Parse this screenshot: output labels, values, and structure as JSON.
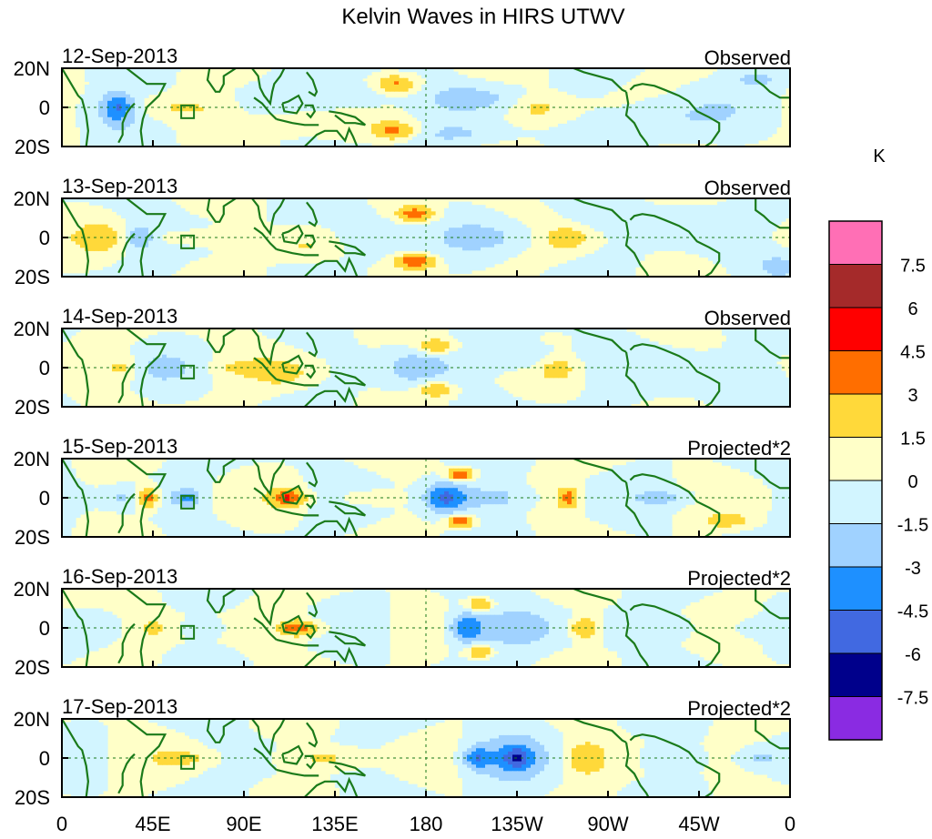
{
  "title": "Kelvin Waves in HIRS UTWV",
  "chart_data": {
    "type": "heatmap",
    "title": "Kelvin Waves in HIRS UTWV",
    "x_tick_labels": [
      "0",
      "45E",
      "90E",
      "135E",
      "180",
      "135W",
      "90W",
      "45W",
      "0"
    ],
    "x_ticks_deg": [
      0,
      45,
      90,
      135,
      180,
      225,
      270,
      315,
      360
    ],
    "y_tick_labels": [
      "20N",
      "0",
      "20S"
    ],
    "ylim": [
      -20,
      20
    ],
    "xlim": [
      0,
      360
    ],
    "panels": [
      {
        "date": "12-Sep-2013",
        "label": "Observed",
        "amp": 1.0,
        "blobs": [
          {
            "lon": 28,
            "lat": 0,
            "v": -3.5,
            "sx": 5,
            "sy": 5
          },
          {
            "lon": 25,
            "lat": -2,
            "v": -2.0,
            "sx": 12,
            "sy": 8
          },
          {
            "lon": 60,
            "lat": 0,
            "v": 1.6,
            "sx": 18,
            "sy": 4
          },
          {
            "lon": 165,
            "lat": 12,
            "v": 3.5,
            "sx": 8,
            "sy": 3.5
          },
          {
            "lon": 165,
            "lat": -12,
            "v": 3.5,
            "sx": 8,
            "sy": 3.5
          },
          {
            "lon": 145,
            "lat": 6,
            "v": -2.0,
            "sx": 14,
            "sy": 6
          },
          {
            "lon": 205,
            "lat": 5,
            "v": -1.8,
            "sx": 18,
            "sy": 5
          },
          {
            "lon": 200,
            "lat": -14,
            "v": -1.6,
            "sx": 20,
            "sy": 4
          },
          {
            "lon": 235,
            "lat": 0,
            "v": 2.0,
            "sx": 10,
            "sy": 5
          },
          {
            "lon": 300,
            "lat": -5,
            "v": -1.6,
            "sx": 20,
            "sy": 8
          },
          {
            "lon": 345,
            "lat": 15,
            "v": -1.8,
            "sx": 10,
            "sy": 4
          },
          {
            "lon": 110,
            "lat": -8,
            "v": 1.3,
            "sx": 15,
            "sy": 5
          }
        ]
      },
      {
        "date": "13-Sep-2013",
        "label": "Observed",
        "amp": 1.0,
        "blobs": [
          {
            "lon": 38,
            "lat": 0,
            "v": -3.2,
            "sx": 5,
            "sy": 4
          },
          {
            "lon": 20,
            "lat": 0,
            "v": 2.0,
            "sx": 8,
            "sy": 5
          },
          {
            "lon": 65,
            "lat": 0,
            "v": 1.6,
            "sx": 15,
            "sy": 3
          },
          {
            "lon": 175,
            "lat": 12,
            "v": 4.0,
            "sx": 7,
            "sy": 3
          },
          {
            "lon": 175,
            "lat": -12,
            "v": 4.5,
            "sx": 7,
            "sy": 3
          },
          {
            "lon": 150,
            "lat": 0,
            "v": -2.2,
            "sx": 12,
            "sy": 8
          },
          {
            "lon": 215,
            "lat": 0,
            "v": -1.8,
            "sx": 15,
            "sy": 6
          },
          {
            "lon": 250,
            "lat": 0,
            "v": 2.2,
            "sx": 8,
            "sy": 4
          },
          {
            "lon": 120,
            "lat": -5,
            "v": 1.6,
            "sx": 15,
            "sy": 5
          },
          {
            "lon": 300,
            "lat": 10,
            "v": -1.5,
            "sx": 25,
            "sy": 5
          },
          {
            "lon": 355,
            "lat": -14,
            "v": -1.8,
            "sx": 8,
            "sy": 5
          }
        ]
      },
      {
        "date": "14-Sep-2013",
        "label": "Observed",
        "amp": 1.0,
        "blobs": [
          {
            "lon": 30,
            "lat": 0,
            "v": 1.8,
            "sx": 6,
            "sy": 4
          },
          {
            "lon": 50,
            "lat": 0,
            "v": -1.6,
            "sx": 8,
            "sy": 4
          },
          {
            "lon": 90,
            "lat": 0,
            "v": 1.5,
            "sx": 12,
            "sy": 3
          },
          {
            "lon": 185,
            "lat": 11,
            "v": 3.3,
            "sx": 7,
            "sy": 3
          },
          {
            "lon": 185,
            "lat": -11,
            "v": 3.3,
            "sx": 7,
            "sy": 3
          },
          {
            "lon": 175,
            "lat": 0,
            "v": -2.0,
            "sx": 12,
            "sy": 8
          },
          {
            "lon": 230,
            "lat": 5,
            "v": -1.7,
            "sx": 15,
            "sy": 5
          },
          {
            "lon": 245,
            "lat": 0,
            "v": 2.2,
            "sx": 6,
            "sy": 4
          },
          {
            "lon": 110,
            "lat": -3,
            "v": 1.6,
            "sx": 10,
            "sy": 5
          },
          {
            "lon": 320,
            "lat": -5,
            "v": -1.6,
            "sx": 20,
            "sy": 8
          }
        ]
      },
      {
        "date": "15-Sep-2013",
        "label": "Projected*2",
        "amp": 1.0,
        "blobs": [
          {
            "lon": 42,
            "lat": 0,
            "v": 4.2,
            "sx": 4,
            "sy": 4
          },
          {
            "lon": 62,
            "lat": 0,
            "v": -3.2,
            "sx": 5,
            "sy": 3
          },
          {
            "lon": 30,
            "lat": 0,
            "v": -1.8,
            "sx": 4,
            "sy": 3
          },
          {
            "lon": 112,
            "lat": 0,
            "v": 4.2,
            "sx": 6,
            "sy": 3
          },
          {
            "lon": 190,
            "lat": 0,
            "v": -5.0,
            "sx": 8,
            "sy": 6
          },
          {
            "lon": 197,
            "lat": 12,
            "v": 5.0,
            "sx": 5,
            "sy": 2.5
          },
          {
            "lon": 197,
            "lat": -12,
            "v": 5.0,
            "sx": 5,
            "sy": 2.5
          },
          {
            "lon": 215,
            "lat": 0,
            "v": -2.2,
            "sx": 12,
            "sy": 5
          },
          {
            "lon": 250,
            "lat": 0,
            "v": 3.6,
            "sx": 4,
            "sy": 4
          },
          {
            "lon": 300,
            "lat": 0,
            "v": -1.8,
            "sx": 10,
            "sy": 3
          },
          {
            "lon": 330,
            "lat": -12,
            "v": 1.8,
            "sx": 10,
            "sy": 3
          },
          {
            "lon": 150,
            "lat": 0,
            "v": 1.8,
            "sx": 10,
            "sy": 3
          }
        ]
      },
      {
        "date": "16-Sep-2013",
        "label": "Projected*2",
        "amp": 1.0,
        "blobs": [
          {
            "lon": 45,
            "lat": 0,
            "v": 1.8,
            "sx": 5,
            "sy": 3
          },
          {
            "lon": 70,
            "lat": 0,
            "v": -1.8,
            "sx": 6,
            "sy": 3
          },
          {
            "lon": 118,
            "lat": 0,
            "v": 4.2,
            "sx": 8,
            "sy": 3
          },
          {
            "lon": 200,
            "lat": 0,
            "v": -4.2,
            "sx": 7,
            "sy": 6
          },
          {
            "lon": 207,
            "lat": 12,
            "v": 4.0,
            "sx": 5,
            "sy": 2.5
          },
          {
            "lon": 207,
            "lat": -12,
            "v": 4.0,
            "sx": 5,
            "sy": 2.5
          },
          {
            "lon": 225,
            "lat": 0,
            "v": -2.0,
            "sx": 15,
            "sy": 8
          },
          {
            "lon": 258,
            "lat": 0,
            "v": 3.5,
            "sx": 5,
            "sy": 4
          },
          {
            "lon": 300,
            "lat": 0,
            "v": -1.6,
            "sx": 10,
            "sy": 4
          },
          {
            "lon": 340,
            "lat": 0,
            "v": -1.6,
            "sx": 6,
            "sy": 3
          },
          {
            "lon": 5,
            "lat": 15,
            "v": 1.6,
            "sx": 8,
            "sy": 3
          }
        ]
      },
      {
        "date": "17-Sep-2013",
        "label": "Projected*2",
        "amp": 1.0,
        "blobs": [
          {
            "lon": 130,
            "lat": 0,
            "v": 2.0,
            "sx": 14,
            "sy": 4
          },
          {
            "lon": 205,
            "lat": 0,
            "v": -3.5,
            "sx": 5,
            "sy": 4
          },
          {
            "lon": 225,
            "lat": 0,
            "v": -3.6,
            "sx": 5,
            "sy": 4
          },
          {
            "lon": 220,
            "lat": 0,
            "v": -1.8,
            "sx": 15,
            "sy": 12
          },
          {
            "lon": 258,
            "lat": 0,
            "v": 2.8,
            "sx": 7,
            "sy": 6
          },
          {
            "lon": 300,
            "lat": 0,
            "v": -1.5,
            "sx": 10,
            "sy": 4
          },
          {
            "lon": 345,
            "lat": 0,
            "v": -1.6,
            "sx": 6,
            "sy": 3
          },
          {
            "lon": 60,
            "lat": 0,
            "v": 1.5,
            "sx": 10,
            "sy": 3
          }
        ]
      }
    ],
    "colorbar": {
      "unit": "K",
      "levels": [
        -7.5,
        -6,
        -4.5,
        -3,
        -1.5,
        0,
        1.5,
        3,
        4.5,
        6,
        7.5
      ],
      "level_labels": [
        "7.5",
        "6",
        "4.5",
        "3",
        "1.5",
        "0",
        "-1.5",
        "-3",
        "-4.5",
        "-6",
        "-7.5"
      ],
      "colors_top_to_bottom": [
        "#ff6fb5",
        "#a52a2a",
        "#ff0000",
        "#ff6e00",
        "#ffd93a",
        "#ffffc8",
        "#d2f5ff",
        "#a0d2ff",
        "#1e90ff",
        "#4169e1",
        "#00008b",
        "#8a2be2"
      ]
    }
  }
}
